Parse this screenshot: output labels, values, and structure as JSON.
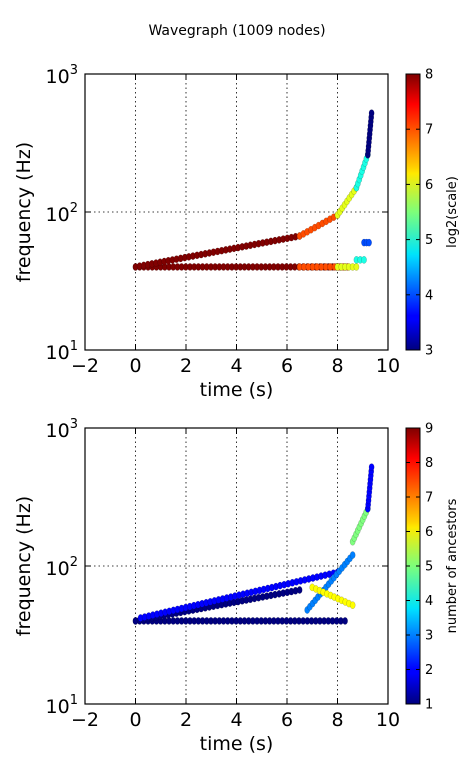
{
  "figure_title": "Wavegraph (1009 nodes)",
  "chart_data": [
    {
      "type": "scatter",
      "title": "",
      "xlabel": "time (s)",
      "ylabel": "frequency (Hz)",
      "xlim": [
        -2,
        10
      ],
      "ylim": [
        10,
        1000
      ],
      "y_scale": "log",
      "x_ticks": [
        "−2",
        "0",
        "2",
        "4",
        "6",
        "8",
        "10"
      ],
      "y_ticks": [
        {
          "base": "10",
          "exp": "1"
        },
        {
          "base": "10",
          "exp": "2"
        },
        {
          "base": "10",
          "exp": "3"
        }
      ],
      "grid": true,
      "colorbar": {
        "label": "log2(scale)",
        "range": [
          3,
          8
        ],
        "ticks": [
          "3",
          "4",
          "5",
          "6",
          "7",
          "8"
        ],
        "colormap": "jet"
      },
      "point_color_by": "log2(scale)",
      "series": [
        {
          "t": [
            0.0,
            8.3
          ],
          "f": [
            40,
            40
          ],
          "scale": 8
        },
        {
          "t": [
            0.0,
            6.5
          ],
          "f": [
            40,
            67
          ],
          "scale": 8
        },
        {
          "t": [
            6.5,
            8.4
          ],
          "f": [
            40,
            40
          ],
          "scale": 7
        },
        {
          "t": [
            6.5,
            8.0
          ],
          "f": [
            67,
            95
          ],
          "scale": 7
        },
        {
          "t": [
            8.0,
            8.75
          ],
          "f": [
            40,
            40
          ],
          "scale": 6
        },
        {
          "t": [
            8.0,
            8.75
          ],
          "f": [
            95,
            150
          ],
          "scale": 6
        },
        {
          "t": [
            8.75,
            9.05
          ],
          "f": [
            45,
            45
          ],
          "scale": 5
        },
        {
          "t": [
            8.75,
            9.2
          ],
          "f": [
            150,
            260
          ],
          "scale": 5
        },
        {
          "t": [
            9.05,
            9.25
          ],
          "f": [
            60,
            60
          ],
          "scale": 4
        },
        {
          "t": [
            9.2,
            9.35
          ],
          "f": [
            260,
            520
          ],
          "scale": 3
        }
      ]
    },
    {
      "type": "scatter",
      "title": "",
      "xlabel": "time (s)",
      "ylabel": "frequency (Hz)",
      "xlim": [
        -2,
        10
      ],
      "ylim": [
        10,
        1000
      ],
      "y_scale": "log",
      "x_ticks": [
        "−2",
        "0",
        "2",
        "4",
        "6",
        "8",
        "10"
      ],
      "y_ticks": [
        {
          "base": "10",
          "exp": "1"
        },
        {
          "base": "10",
          "exp": "2"
        },
        {
          "base": "10",
          "exp": "3"
        }
      ],
      "grid": true,
      "colorbar": {
        "label": "number of ancestors",
        "range": [
          1,
          9
        ],
        "ticks": [
          "1",
          "2",
          "3",
          "4",
          "5",
          "6",
          "7",
          "8",
          "9"
        ],
        "colormap": "jet"
      },
      "point_color_by": "number of ancestors",
      "series": [
        {
          "t": [
            0.0,
            8.3
          ],
          "f": [
            40,
            40
          ],
          "ancestors": 1
        },
        {
          "t": [
            0.0,
            6.5
          ],
          "f": [
            40,
            67
          ],
          "ancestors": 1
        },
        {
          "t": [
            0.2,
            8.0
          ],
          "f": [
            42,
            90
          ],
          "ancestors": 2
        },
        {
          "t": [
            6.8,
            8.6
          ],
          "f": [
            48,
            120
          ],
          "ancestors": 3
        },
        {
          "t": [
            7.0,
            8.6
          ],
          "f": [
            70,
            52
          ],
          "ancestors": 6
        },
        {
          "t": [
            8.6,
            9.2
          ],
          "f": [
            150,
            260
          ],
          "ancestors": 5
        },
        {
          "t": [
            9.2,
            9.35
          ],
          "f": [
            260,
            520
          ],
          "ancestors": 2
        }
      ]
    }
  ]
}
